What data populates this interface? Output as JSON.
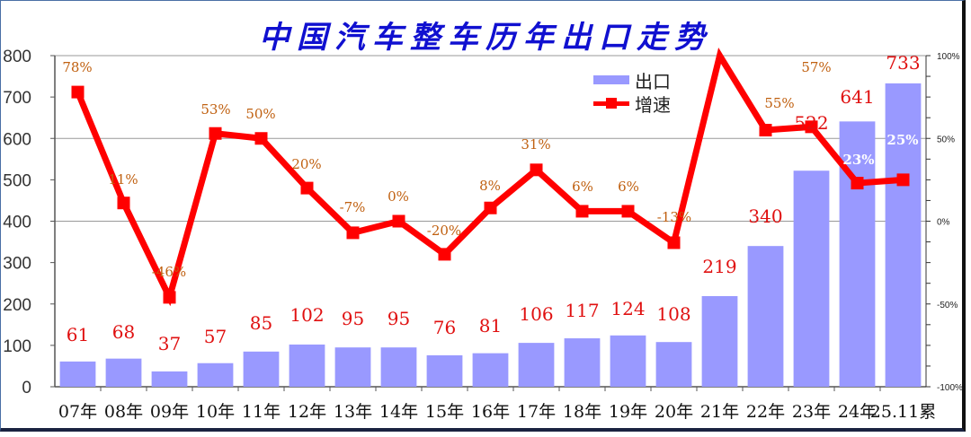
{
  "title": "中国汽车整车历年出口走势",
  "legend": {
    "bar_label": "出口",
    "line_label": "增速"
  },
  "colors": {
    "bar": "#9999ff",
    "line": "#ff0000",
    "title": "#1010d0",
    "value_label": "#e01010",
    "growth_label": "#c06010"
  },
  "chart_data": {
    "type": "bar+line",
    "title": "中国汽车整车历年出口走势",
    "categories": [
      "07年",
      "08年",
      "09年",
      "10年",
      "11年",
      "12年",
      "13年",
      "14年",
      "15年",
      "16年",
      "17年",
      "18年",
      "19年",
      "20年",
      "21年",
      "22年",
      "23年",
      "24年",
      "25.11累"
    ],
    "series": [
      {
        "name": "出口",
        "type": "bar",
        "axis": "left",
        "values": [
          61,
          68,
          37,
          57,
          85,
          102,
          95,
          95,
          76,
          81,
          106,
          117,
          124,
          108,
          219,
          340,
          522,
          641,
          733
        ]
      },
      {
        "name": "增速",
        "type": "line",
        "axis": "right",
        "unit": "%",
        "values": [
          78,
          11,
          -46,
          53,
          50,
          20,
          -7,
          0,
          -20,
          8,
          31,
          6,
          6,
          -13,
          101,
          55,
          57,
          23,
          25
        ],
        "labels": [
          "78%",
          "11%",
          "-46%",
          "53%",
          "50%",
          "20%",
          "-7%",
          "0%",
          "-20%",
          "8%",
          "31%",
          "6%",
          "6%",
          "-13%",
          "",
          "55%",
          "57%",
          "23%",
          "25%"
        ]
      }
    ],
    "left_axis": {
      "ylim": [
        0,
        800
      ],
      "ticks": [
        "0",
        "100",
        "200",
        "300",
        "400",
        "500",
        "600",
        "700",
        "800"
      ]
    },
    "right_axis": {
      "ylim": [
        -100,
        100
      ],
      "ticks": [
        "-100%",
        "-50%",
        "0%",
        "50%",
        "100%"
      ]
    },
    "grid": "horizontal at 400 and 600 (left axis)",
    "legend_position": "upper center-right"
  }
}
